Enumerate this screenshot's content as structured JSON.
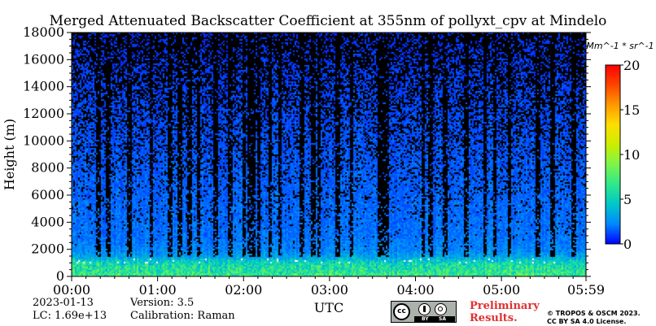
{
  "chart_data": {
    "type": "heatmap",
    "title": "Merged Attenuated Backscatter Coefficient at 355nm of pollyxt_cpv at Mindelo",
    "ylabel": "Height (m)",
    "xlabel": "UTC",
    "ylim": [
      0,
      18000
    ],
    "yticks": [
      0,
      2000,
      4000,
      6000,
      8000,
      10000,
      12000,
      14000,
      16000,
      18000
    ],
    "xlim": [
      "00:00",
      "05:59"
    ],
    "xticks": [
      "00:00",
      "01:00",
      "02:00",
      "03:00",
      "04:00",
      "05:00",
      "05:59"
    ],
    "colorbar": {
      "label": "Mm^-1 * sr^-1",
      "range": [
        0,
        20
      ],
      "ticks": [
        0,
        5,
        10,
        15,
        20
      ],
      "colormap": [
        "#0000ff",
        "#0088ff",
        "#00c8c8",
        "#2ee88a",
        "#7cf54a",
        "#ccee00",
        "#ffdd00",
        "#ff9900",
        "#ff4400",
        "#ff0000"
      ]
    },
    "profile": {
      "heights_m": [
        0,
        500,
        1000,
        1200,
        1500,
        2000,
        3000,
        5000,
        8000,
        11000,
        14000,
        17000,
        18000
      ],
      "backscatter": [
        6.8,
        6.2,
        5.4,
        4.5,
        3.2,
        2.3,
        1.9,
        1.7,
        1.5,
        1.3,
        1.1,
        0.9,
        0.8
      ]
    },
    "signal_dropouts_utc": [
      "00:18",
      "00:25",
      "00:40",
      "00:55",
      "01:08",
      "01:15",
      "01:22",
      "01:28",
      "01:40",
      "01:50",
      "02:00",
      "02:03",
      "02:06",
      "02:10",
      "02:18",
      "02:25",
      "02:40",
      "02:48",
      "02:52",
      "03:05",
      "03:15",
      "03:35",
      "03:38",
      "03:40",
      "04:05",
      "04:10",
      "04:20",
      "04:35",
      "04:48",
      "04:55",
      "05:05",
      "05:25",
      "05:35",
      "05:50"
    ]
  },
  "info": {
    "date": "2023-01-13",
    "lc": "LC: 1.69e+13",
    "version": "Version: 3.5",
    "calibration": "Calibration: Raman"
  },
  "license": {
    "preliminary_line1": "Preliminary",
    "preliminary_line2": "Results.",
    "copyright_line1": "© TROPOS & OSCM 2023.",
    "copyright_line2": "CC BY SA 4.0 License.",
    "badge_cc": "cc",
    "badge_by": "BY",
    "badge_sa": "SA"
  }
}
